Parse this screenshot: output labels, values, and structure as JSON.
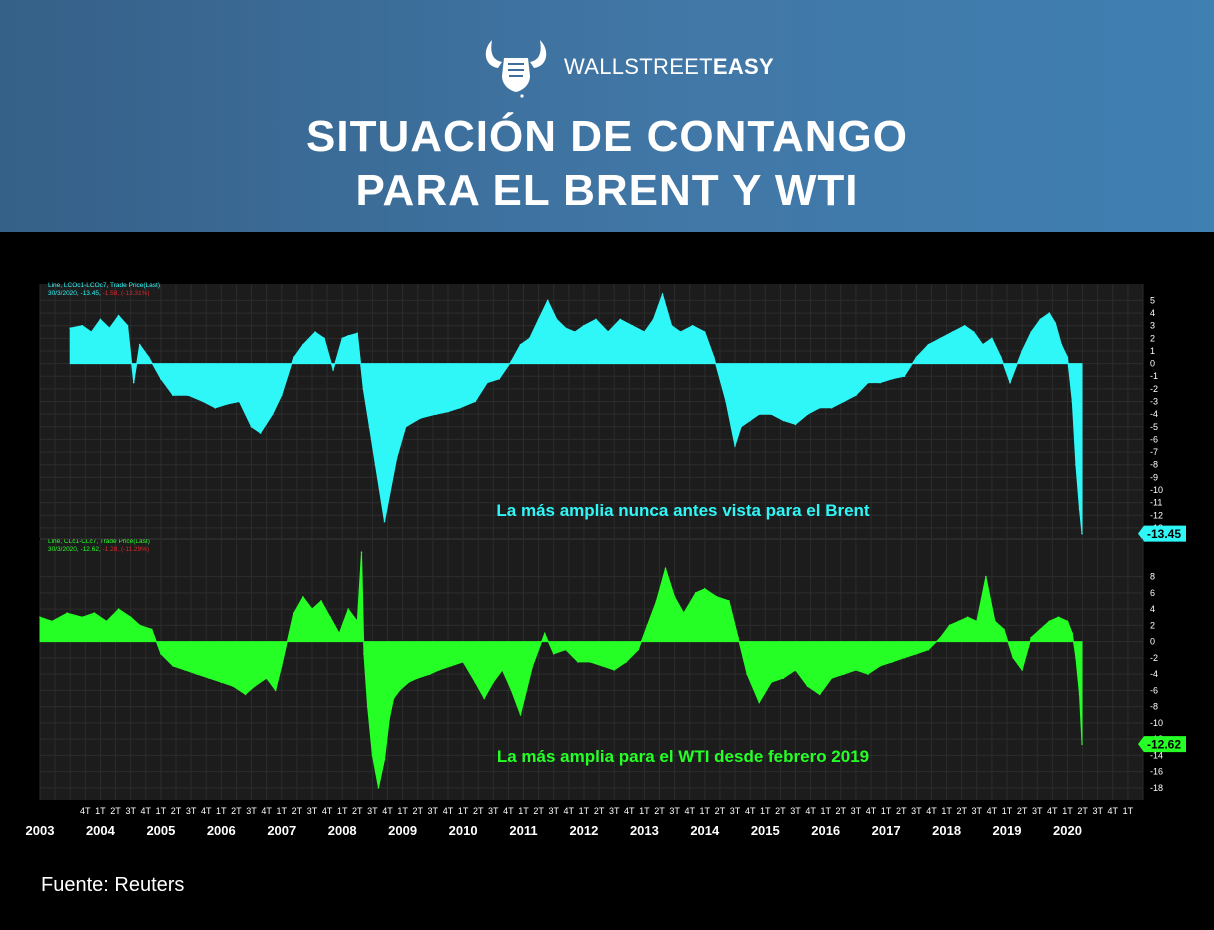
{
  "header": {
    "brand_light": "WALLSTREET",
    "brand_bold": "EASY",
    "title_line1": "SITUACIÓN DE CONTANGO",
    "title_line2": "PARA EL BRENT Y WTI",
    "logo_icon": "bull-fist-icon"
  },
  "footer": {
    "source": "Fuente: Reuters"
  },
  "colors": {
    "header_bg": "#3e77a8",
    "brent": "#2ff7f7",
    "wti": "#25ff25",
    "plot_bg": "#1c1c1c",
    "loss": "#e0262c"
  },
  "chart_data": [
    {
      "type": "area",
      "name": "brent",
      "legend_line": "Line, LCOc1-LCOc7, Trade Price(Last)",
      "legend_date": "30/3/2020,",
      "legend_value": "-13.45,",
      "legend_change": "-1.58, (-13.31%)",
      "annotation": "La más amplia nunca antes vista para el Brent",
      "last_value_label": "-13.45",
      "y_ticks": [
        5,
        4,
        3,
        2,
        1,
        0,
        -1,
        -2,
        -3,
        -4,
        -5,
        -6,
        -7,
        -8,
        -9,
        -10,
        -11,
        -12,
        -13
      ],
      "ylim": [
        -13.8,
        6.3
      ],
      "x": [
        2003.5,
        2003.7,
        2003.85,
        2004.0,
        2004.15,
        2004.3,
        2004.45,
        2004.55,
        2004.65,
        2004.8,
        2005.0,
        2005.2,
        2005.45,
        2005.7,
        2005.9,
        2006.1,
        2006.3,
        2006.5,
        2006.65,
        2006.85,
        2007.0,
        2007.2,
        2007.35,
        2007.55,
        2007.7,
        2007.85,
        2008.0,
        2008.1,
        2008.25,
        2008.35,
        2008.45,
        2008.55,
        2008.7,
        2008.9,
        2009.05,
        2009.3,
        2009.55,
        2009.75,
        2009.95,
        2010.2,
        2010.4,
        2010.6,
        2010.8,
        2010.95,
        2011.1,
        2011.25,
        2011.4,
        2011.55,
        2011.7,
        2011.85,
        2012.0,
        2012.2,
        2012.4,
        2012.6,
        2012.8,
        2013.0,
        2013.15,
        2013.3,
        2013.45,
        2013.6,
        2013.8,
        2014.0,
        2014.15,
        2014.35,
        2014.5,
        2014.6,
        2014.75,
        2014.9,
        2015.1,
        2015.3,
        2015.5,
        2015.7,
        2015.9,
        2016.1,
        2016.3,
        2016.5,
        2016.7,
        2016.9,
        2017.1,
        2017.3,
        2017.5,
        2017.7,
        2017.9,
        2018.1,
        2018.3,
        2018.45,
        2018.6,
        2018.75,
        2018.9,
        2019.05,
        2019.25,
        2019.4,
        2019.55,
        2019.7,
        2019.8,
        2019.9,
        2020.0,
        2020.08,
        2020.14,
        2020.2,
        2020.24
      ],
      "values": [
        2.8,
        3.0,
        2.5,
        3.5,
        2.8,
        3.8,
        3.0,
        -1.5,
        1.5,
        0.5,
        -1.2,
        -2.5,
        -2.5,
        -3.0,
        -3.5,
        -3.2,
        -3.0,
        -5.0,
        -5.5,
        -4.0,
        -2.5,
        0.5,
        1.5,
        2.5,
        2.0,
        -0.5,
        2.0,
        2.2,
        2.4,
        -2.0,
        -5.0,
        -8.0,
        -12.5,
        -7.5,
        -5.0,
        -4.3,
        -4.0,
        -3.8,
        -3.5,
        -3.0,
        -1.5,
        -1.2,
        0.2,
        1.5,
        2.0,
        3.5,
        5.0,
        3.5,
        2.8,
        2.5,
        3.0,
        3.5,
        2.5,
        3.5,
        3.0,
        2.5,
        3.5,
        5.5,
        3.0,
        2.5,
        3.0,
        2.5,
        0.5,
        -3.0,
        -6.5,
        -5.0,
        -4.5,
        -4.0,
        -4.0,
        -4.5,
        -4.8,
        -4.0,
        -3.5,
        -3.5,
        -3.0,
        -2.5,
        -1.5,
        -1.5,
        -1.2,
        -1.0,
        0.5,
        1.5,
        2.0,
        2.5,
        3.0,
        2.5,
        1.5,
        2.0,
        0.5,
        -1.5,
        1.0,
        2.5,
        3.5,
        4.0,
        3.2,
        1.5,
        0.5,
        -3.0,
        -8.0,
        -11.5,
        -13.45
      ]
    },
    {
      "type": "area",
      "name": "wti",
      "legend_line": "Line, CLc1-CLc7, Trade Price(Last)",
      "legend_date": "30/3/2020,",
      "legend_value": "-12.62,",
      "legend_change": "-1.28, (-11.29%)",
      "annotation": "La más amplia para el WTI desde febrero 2019",
      "last_value_label": "-12.62",
      "y_ticks": [
        8,
        6,
        4,
        2,
        0,
        -2,
        -4,
        -6,
        -8,
        -10,
        -12,
        -14,
        -16,
        -18
      ],
      "ylim": [
        -19.5,
        12.5
      ],
      "x": [
        2003.0,
        2003.2,
        2003.45,
        2003.7,
        2003.9,
        2004.1,
        2004.3,
        2004.5,
        2004.65,
        2004.85,
        2005.0,
        2005.2,
        2005.4,
        2005.6,
        2005.8,
        2006.0,
        2006.2,
        2006.4,
        2006.55,
        2006.75,
        2006.9,
        2007.0,
        2007.2,
        2007.35,
        2007.5,
        2007.65,
        2007.8,
        2007.95,
        2008.1,
        2008.25,
        2008.32,
        2008.36,
        2008.42,
        2008.5,
        2008.6,
        2008.7,
        2008.78,
        2008.85,
        2008.95,
        2009.1,
        2009.25,
        2009.45,
        2009.6,
        2009.8,
        2010.0,
        2010.2,
        2010.35,
        2010.5,
        2010.65,
        2010.8,
        2010.95,
        2011.15,
        2011.35,
        2011.5,
        2011.7,
        2011.9,
        2012.1,
        2012.3,
        2012.5,
        2012.7,
        2012.9,
        2013.05,
        2013.2,
        2013.35,
        2013.5,
        2013.65,
        2013.85,
        2014.0,
        2014.2,
        2014.4,
        2014.55,
        2014.7,
        2014.9,
        2015.1,
        2015.3,
        2015.5,
        2015.7,
        2015.9,
        2016.1,
        2016.3,
        2016.5,
        2016.7,
        2016.9,
        2017.1,
        2017.3,
        2017.5,
        2017.7,
        2017.9,
        2018.05,
        2018.2,
        2018.35,
        2018.5,
        2018.65,
        2018.8,
        2018.95,
        2019.1,
        2019.25,
        2019.4,
        2019.55,
        2019.7,
        2019.85,
        2020.0,
        2020.08,
        2020.14,
        2020.2,
        2020.24
      ],
      "values": [
        3.0,
        2.5,
        3.5,
        3.0,
        3.5,
        2.5,
        4.0,
        3.0,
        2.0,
        1.5,
        -1.5,
        -3.0,
        -3.5,
        -4.0,
        -4.5,
        -5.0,
        -5.5,
        -6.5,
        -5.5,
        -4.5,
        -6.0,
        -3.0,
        3.5,
        5.5,
        4.0,
        5.0,
        3.0,
        1.0,
        4.0,
        2.5,
        11.0,
        -1.5,
        -8.0,
        -14.0,
        -18.0,
        -14.5,
        -9.5,
        -7.0,
        -6.0,
        -5.0,
        -4.5,
        -4.0,
        -3.5,
        -3.0,
        -2.5,
        -5.0,
        -7.0,
        -5.0,
        -3.5,
        -6.0,
        -9.0,
        -3.0,
        1.0,
        -1.5,
        -1.0,
        -2.5,
        -2.5,
        -3.0,
        -3.5,
        -2.5,
        -1.0,
        2.0,
        5.0,
        9.0,
        5.5,
        3.5,
        6.0,
        6.5,
        5.5,
        5.0,
        0.5,
        -4.0,
        -7.5,
        -5.0,
        -4.5,
        -3.5,
        -5.5,
        -6.5,
        -4.5,
        -4.0,
        -3.5,
        -4.0,
        -3.0,
        -2.5,
        -2.0,
        -1.5,
        -1.0,
        0.5,
        2.0,
        2.5,
        3.0,
        2.5,
        8.0,
        2.5,
        1.5,
        -2.0,
        -3.5,
        0.5,
        1.5,
        2.5,
        3.0,
        2.5,
        1.0,
        -2.0,
        -6.5,
        -12.62
      ]
    }
  ],
  "x_axis": {
    "xlim": [
      2003.0,
      2021.25
    ],
    "years": [
      "2003",
      "2004",
      "2005",
      "2006",
      "2007",
      "2008",
      "2009",
      "2010",
      "2011",
      "2012",
      "2013",
      "2014",
      "2015",
      "2016",
      "2017",
      "2018",
      "2019",
      "2020"
    ],
    "quarter_labels": [
      "1T",
      "2T",
      "3T",
      "4T"
    ],
    "first_quarter_year": 2003.75,
    "last_quarter_year": 2021.0
  }
}
